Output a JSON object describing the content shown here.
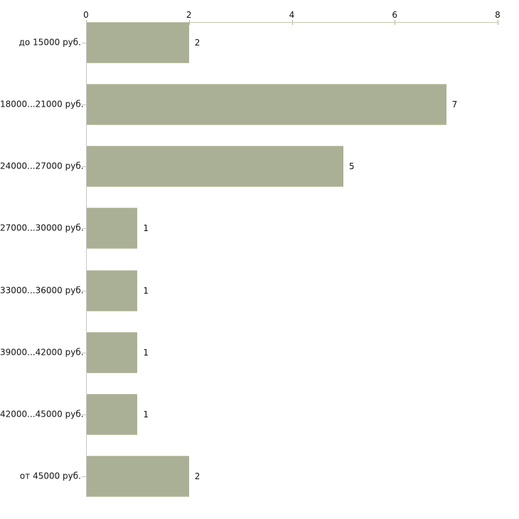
{
  "chart_data": {
    "type": "bar",
    "orientation": "horizontal",
    "title": "",
    "categories": [
      "до 15000 руб.",
      "18000...21000 руб.",
      "24000...27000 руб.",
      "27000...30000 руб.",
      "33000...36000 руб.",
      "39000...42000 руб.",
      "42000...45000 руб.",
      "от 45000 руб."
    ],
    "values": [
      2,
      7,
      5,
      1,
      1,
      1,
      1,
      2
    ],
    "value_labels": [
      "2",
      "7",
      "5",
      "1",
      "1",
      "1",
      "1",
      "2"
    ],
    "xlim": [
      0,
      8
    ],
    "x_ticks": [
      0,
      2,
      4,
      6,
      8
    ],
    "x_tick_labels": [
      "0",
      "2",
      "4",
      "6",
      "8"
    ],
    "axis_position": "top",
    "grid": false,
    "legend": "none",
    "xlabel": "",
    "ylabel": "",
    "colors": {
      "bar_fill": "#aab095",
      "bar_edge": "#c6cab1",
      "axis_line_horizontal": "#c6c9b0",
      "axis_line_vertical": "#c9c9c9",
      "tick_mark": "#b0b49a",
      "category_tick": "#c3c3c3",
      "text": "#111111",
      "background": "#ffffff"
    }
  }
}
